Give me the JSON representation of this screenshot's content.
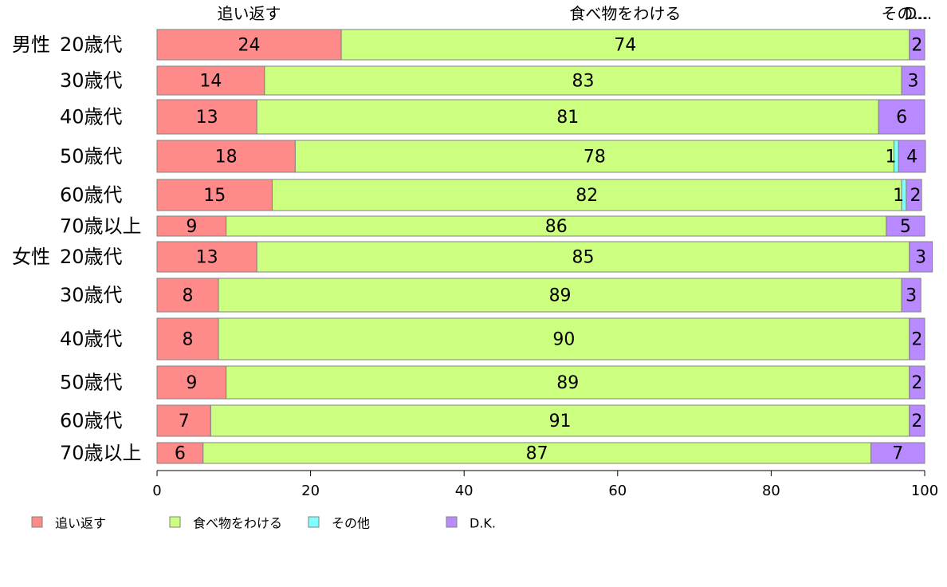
{
  "chart_data": {
    "type": "bar",
    "orientation": "horizontal",
    "stacked": true,
    "xlim": [
      0,
      100
    ],
    "x_ticks": [
      0,
      20,
      40,
      60,
      80,
      100
    ],
    "grid": false,
    "legend_position": "bottom",
    "groups": [
      "男性",
      "女性"
    ],
    "categories": [
      "20歳代",
      "30歳代",
      "40歳代",
      "50歳代",
      "60歳代",
      "70歳以上",
      "20歳代",
      "30歳代",
      "40歳代",
      "50歳代",
      "60歳代",
      "70歳以上"
    ],
    "category_groups": [
      0,
      0,
      0,
      0,
      0,
      0,
      1,
      1,
      1,
      1,
      1,
      1
    ],
    "top_labels": [
      "追い返す",
      "食べ物をわける",
      "その...",
      "D..."
    ],
    "series": [
      {
        "name": "追い返す",
        "color": "#ff8a8a",
        "values": [
          24,
          14,
          13,
          18,
          15,
          9,
          13,
          8,
          8,
          9,
          7,
          6
        ],
        "labels": [
          "24",
          "14",
          "13",
          "18",
          "15",
          "9",
          "13",
          "8",
          "8",
          "9",
          "7",
          "6"
        ]
      },
      {
        "name": "食べ物をわける",
        "color": "#ccff80",
        "values": [
          74,
          83,
          81,
          78,
          82,
          86,
          85,
          89,
          90,
          89,
          91,
          87
        ],
        "labels": [
          "74",
          "83",
          "81",
          "78",
          "82",
          "86",
          "85",
          "89",
          "90",
          "89",
          "91",
          "87"
        ]
      },
      {
        "name": "その他",
        "color": "#80ffff",
        "values": [
          0,
          0,
          0,
          0.6,
          0.6,
          0,
          0,
          0,
          0,
          0,
          0,
          0
        ],
        "labels": [
          "",
          "",
          "",
          "1",
          "1",
          "",
          "",
          "",
          "",
          "",
          "",
          ""
        ]
      },
      {
        "name": "D.K.",
        "color": "#b98aff",
        "values": [
          2,
          3,
          6,
          3.5,
          2,
          5,
          3,
          2.5,
          2,
          2,
          2,
          7
        ],
        "labels": [
          "2",
          "3",
          "6",
          "4",
          "2",
          "5",
          "3",
          "3",
          "2",
          "2",
          "2",
          "7"
        ]
      }
    ]
  }
}
